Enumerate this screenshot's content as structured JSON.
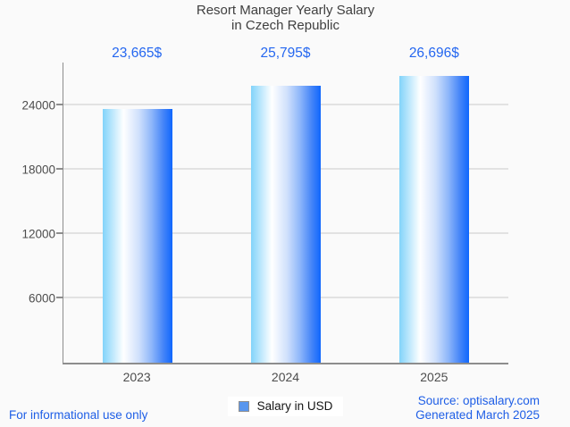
{
  "title": {
    "line1": "Resort Manager Yearly Salary",
    "line2": "in Czech Republic"
  },
  "chart_data": {
    "type": "bar",
    "title": "Resort Manager Yearly Salary in Czech Republic",
    "categories": [
      "2023",
      "2024",
      "2025"
    ],
    "values": [
      23665,
      25795,
      26696
    ],
    "value_labels": [
      "23,665$",
      "25,795$",
      "26,696$"
    ],
    "series_name": "Salary in USD",
    "yticks": [
      6000,
      12000,
      18000,
      24000
    ],
    "ytick_labels": [
      "6000",
      "12000",
      "18000",
      "24000"
    ],
    "ylim": [
      0,
      27972
    ],
    "grid": "horizontal",
    "legend_position": "bottom-center",
    "xlabel": "",
    "ylabel": ""
  },
  "legend": {
    "label": "Salary in USD"
  },
  "footer": {
    "left": "For informational use only",
    "source": "Source: optisalary.com",
    "generated": "Generated March 2025"
  },
  "colors": {
    "bg": "#fafafa",
    "title": "#3f3f3f",
    "accent": "#2567f0",
    "footer": "#1e5ee6",
    "axis": "#8d8d8d",
    "grid": "#e2e2e2",
    "ticktext": "#4d4d4d",
    "legendtext": "#141414",
    "marker": "#5896ee",
    "bar_gradient": [
      [
        "#82d3fa",
        "0%"
      ],
      [
        "#ffffff",
        "30%"
      ],
      [
        "#cfe0fc",
        "52%"
      ],
      [
        "#8fb7fa",
        "70%"
      ],
      [
        "#4585f8",
        "87%"
      ],
      [
        "#0f66fd",
        "100%"
      ]
    ]
  }
}
